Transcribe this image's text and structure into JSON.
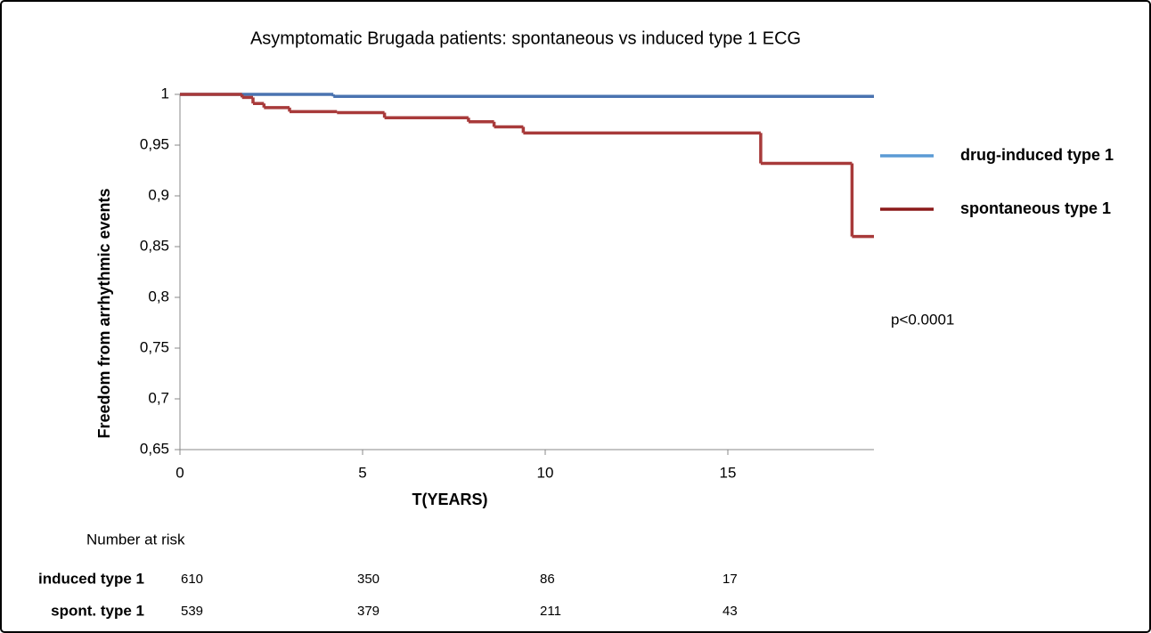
{
  "chart_data": {
    "type": "step",
    "title": "Asymptomatic Brugada patients: spontaneous vs induced type 1 ECG",
    "x_label": "T(YEARS)",
    "y_label": "Freedom from arrhythmic events",
    "xlim": [
      0,
      19
    ],
    "ylim": [
      0.65,
      1
    ],
    "xticks": [
      0,
      5,
      10,
      15
    ],
    "yticks": [
      {
        "value": 0.65,
        "label": "0,65"
      },
      {
        "value": 0.7,
        "label": "0,7"
      },
      {
        "value": 0.75,
        "label": "0,75"
      },
      {
        "value": 0.8,
        "label": "0,8"
      },
      {
        "value": 0.85,
        "label": "0,85"
      },
      {
        "value": 0.9,
        "label": "0,9"
      },
      {
        "value": 0.95,
        "label": "0,95"
      },
      1
    ],
    "series": [
      {
        "name": "drug-induced type 1",
        "color": "#4a73b0",
        "legend_color": "#5b9bd5",
        "x": [
          0,
          4.2
        ],
        "values": [
          1,
          0.998
        ]
      },
      {
        "name": "spontaneous type 1",
        "color": "#a83a3a",
        "legend_color": "#8b1a1a",
        "x": [
          0,
          1.7,
          2,
          2.3,
          3,
          4.3,
          5.6,
          7.9,
          8.6,
          9.4,
          15.9,
          18.4
        ],
        "values": [
          1,
          0.997,
          0.991,
          0.987,
          0.983,
          0.982,
          0.977,
          0.973,
          0.968,
          0.962,
          0.932,
          0.86
        ]
      }
    ],
    "annotation": "p<0.0001",
    "risk_table": {
      "title": "Number at risk",
      "rows": [
        {
          "label": "induced type 1",
          "values": [
            610,
            350,
            86,
            17
          ]
        },
        {
          "label": "spont. type 1",
          "values": [
            539,
            379,
            211,
            43
          ]
        }
      ]
    }
  }
}
